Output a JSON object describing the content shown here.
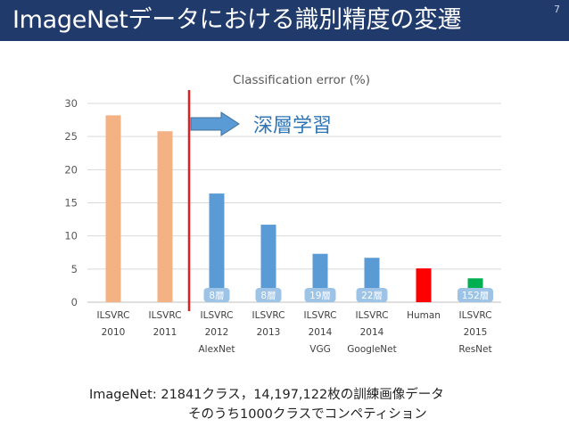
{
  "slide": {
    "title": "ImageNetデータにおける識別精度の変遷",
    "page_number": "7",
    "footnote_line1": "ImageNet: 21841クラス，14,197,122枚の訓練画像データ",
    "footnote_line2": "そのうち1000クラスでコンペティション"
  },
  "chart_data": {
    "type": "bar",
    "title": "Classification error (%)",
    "ylim": [
      0,
      30
    ],
    "yticks": [
      0,
      5,
      10,
      15,
      20,
      25,
      30
    ],
    "grid": true,
    "categories": [
      [
        "ILSVRC",
        "2010"
      ],
      [
        "ILSVRC",
        "2011"
      ],
      [
        "ILSVRC",
        "2012",
        "AlexNet"
      ],
      [
        "ILSVRC",
        "2013"
      ],
      [
        "ILSVRC",
        "2014",
        "VGG"
      ],
      [
        "ILSVRC",
        "2014",
        "GoogleNet"
      ],
      [
        "Human"
      ],
      [
        "ILSVRC",
        "2015",
        "ResNet"
      ]
    ],
    "values": [
      28.2,
      25.8,
      16.4,
      11.7,
      7.3,
      6.7,
      5.1,
      3.6
    ],
    "colors": [
      "#f4b183",
      "#f4b183",
      "#5b9bd5",
      "#5b9bd5",
      "#5b9bd5",
      "#5b9bd5",
      "#ff0000",
      "#00b050"
    ],
    "layer_labels": [
      "",
      "",
      "8層",
      "8層",
      "19層",
      "22層",
      "",
      "152層"
    ],
    "annotation": {
      "text": "深層学習",
      "line_color": "#e02020",
      "arrow_color": "#5b9bd5"
    }
  }
}
